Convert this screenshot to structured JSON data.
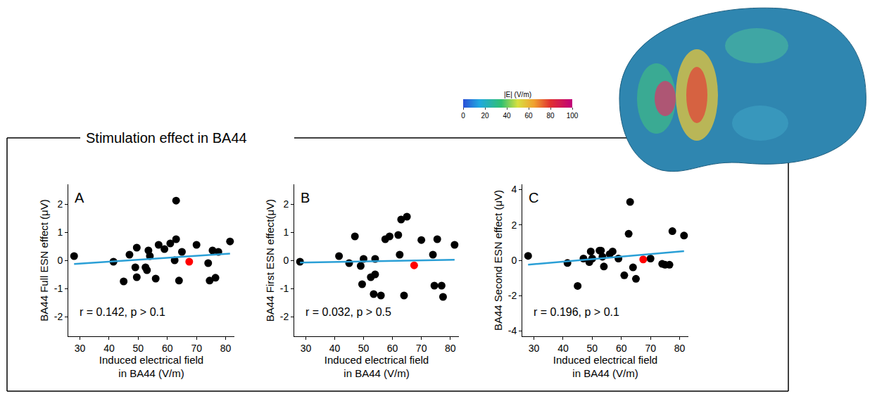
{
  "chart_data": [
    {
      "type": "scatter",
      "panel": "A",
      "annotation": "r = 0.142, p > 0.1",
      "x_label": "Induced electrical field in BA44 (V/m)",
      "y_label": "BA44 Full ESN effect (μV)",
      "xlim": [
        26,
        83
      ],
      "xticks": [
        30,
        40,
        50,
        60,
        70,
        80
      ],
      "ylim": [
        -2.7,
        2.7
      ],
      "yticks": [
        -2,
        -1,
        0,
        1,
        2
      ],
      "grid": false,
      "series": [
        {
          "type": "scatter",
          "marker": "circle",
          "color": "#000000",
          "x": [
            28,
            41.5,
            45,
            47,
            49,
            49.5,
            49.5,
            52.5,
            53,
            53.5,
            54,
            56,
            57,
            59,
            61,
            62.5,
            63,
            63,
            64,
            65,
            70,
            74,
            74.5,
            75.5,
            76.5,
            77.5,
            81.5
          ],
          "values": [
            0.15,
            -0.05,
            -0.75,
            0.2,
            -0.25,
            -0.6,
            0.45,
            -0.25,
            -0.35,
            0.35,
            0.15,
            -0.65,
            0.55,
            0.4,
            0.6,
            0.0,
            0.75,
            2.12,
            -0.72,
            0.3,
            0.55,
            -0.1,
            -0.72,
            0.35,
            -0.62,
            0.3,
            0.67
          ]
        },
        {
          "type": "scatter",
          "marker": "circle",
          "color": "#ff0000",
          "x": [
            67.5
          ],
          "values": [
            -0.05
          ]
        },
        {
          "type": "line",
          "line_style": "solid",
          "color": "#2a9fd6",
          "x": [
            28,
            81.5
          ],
          "values": [
            -0.13,
            0.24
          ]
        }
      ]
    },
    {
      "type": "scatter",
      "panel": "B",
      "annotation": "r = 0.032, p > 0.5",
      "x_label": "Induced electrical field in BA44 (V/m)",
      "y_label": "BA44 First ESN effect(μV)",
      "xlim": [
        26,
        83
      ],
      "xticks": [
        30,
        40,
        50,
        60,
        70,
        80
      ],
      "ylim": [
        -2.7,
        2.7
      ],
      "yticks": [
        -2,
        -1,
        0,
        1,
        2
      ],
      "grid": false,
      "series": [
        {
          "type": "scatter",
          "marker": "circle",
          "color": "#000000",
          "x": [
            28,
            41.5,
            45,
            47,
            49,
            49.5,
            50,
            52.5,
            53.5,
            54,
            54,
            56,
            57.5,
            59,
            62,
            62.5,
            63,
            64,
            65,
            70,
            74,
            74.5,
            75.5,
            77,
            77.5,
            81.5
          ],
          "values": [
            -0.05,
            0.15,
            -0.1,
            0.85,
            -0.2,
            -0.85,
            0.05,
            -0.6,
            -1.2,
            0.05,
            -0.5,
            -1.25,
            0.75,
            0.85,
            0.9,
            0.2,
            1.45,
            -1.25,
            1.55,
            0.72,
            0.2,
            -0.9,
            0.75,
            -0.9,
            -1.3,
            0.55
          ]
        },
        {
          "type": "scatter",
          "marker": "circle",
          "color": "#ff0000",
          "x": [
            67.5
          ],
          "values": [
            -0.18
          ]
        },
        {
          "type": "line",
          "line_style": "solid",
          "color": "#2a9fd6",
          "x": [
            28,
            81.5
          ],
          "values": [
            -0.08,
            0.02
          ]
        }
      ]
    },
    {
      "type": "scatter",
      "panel": "C",
      "annotation": "r = 0.196, p > 0.1",
      "x_label": "Induced electrical field in BA44 (V/m)",
      "y_label": "BA44 Second ESN effect (μV)",
      "xlim": [
        26,
        83
      ],
      "xticks": [
        30,
        40,
        50,
        60,
        70,
        80
      ],
      "ylim": [
        -4.3,
        4.3
      ],
      "yticks": [
        -4,
        -2,
        0,
        2,
        4
      ],
      "grid": false,
      "series": [
        {
          "type": "scatter",
          "marker": "circle",
          "color": "#000000",
          "x": [
            28,
            41.5,
            45,
            47,
            49,
            49.5,
            50,
            52.5,
            53,
            53.5,
            54,
            56,
            57,
            59,
            61,
            62.5,
            63,
            64,
            65,
            70,
            74,
            75,
            76.5,
            77.5,
            81.5
          ],
          "values": [
            0.25,
            -0.15,
            -1.45,
            0.1,
            -0.1,
            0.5,
            0.1,
            0.55,
            0.55,
            0.2,
            -0.35,
            0.35,
            0.5,
            0.1,
            -0.85,
            1.5,
            3.3,
            -0.4,
            -1.05,
            0.1,
            -0.2,
            -0.25,
            -0.25,
            1.65,
            1.4
          ]
        },
        {
          "type": "scatter",
          "marker": "circle",
          "color": "#ff0000",
          "x": [
            67.5
          ],
          "values": [
            0.05
          ]
        },
        {
          "type": "line",
          "line_style": "solid",
          "color": "#2a9fd6",
          "x": [
            28,
            81.5
          ],
          "values": [
            -0.25,
            0.52
          ]
        }
      ]
    }
  ],
  "frame_title": "Stimulation effect in BA44",
  "colorbar": {
    "title": "|E| (V/m)",
    "range": [
      0,
      100
    ],
    "ticks": [
      0,
      20,
      40,
      60,
      80,
      100
    ]
  }
}
